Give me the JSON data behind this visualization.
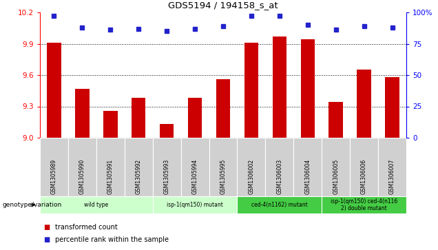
{
  "title": "GDS5194 / 194158_s_at",
  "samples": [
    "GSM1305989",
    "GSM1305990",
    "GSM1305991",
    "GSM1305992",
    "GSM1305993",
    "GSM1305994",
    "GSM1305995",
    "GSM1306002",
    "GSM1306003",
    "GSM1306004",
    "GSM1306005",
    "GSM1306006",
    "GSM1306007"
  ],
  "bar_values": [
    9.91,
    9.47,
    9.26,
    9.38,
    9.13,
    9.38,
    9.56,
    9.91,
    9.97,
    9.94,
    9.34,
    9.65,
    9.58
  ],
  "dot_values": [
    97,
    88,
    86,
    87,
    85,
    87,
    89,
    97,
    97,
    90,
    86,
    89,
    88
  ],
  "ylim_left": [
    9.0,
    10.2
  ],
  "ylim_right": [
    0,
    100
  ],
  "yticks_left": [
    9.0,
    9.3,
    9.6,
    9.9,
    10.2
  ],
  "yticks_right": [
    0,
    25,
    50,
    75,
    100
  ],
  "bar_color": "#cc0000",
  "dot_color": "#2222cc",
  "bar_base": 9.0,
  "groups": [
    {
      "label": "wild type",
      "start": 0,
      "end": 4,
      "color": "#ccffcc"
    },
    {
      "label": "isp-1(qm150) mutant",
      "start": 4,
      "end": 7,
      "color": "#ccffcc"
    },
    {
      "label": "ced-4(n1162) mutant",
      "start": 7,
      "end": 10,
      "color": "#44cc44"
    },
    {
      "label": "isp-1(qm150) ced-4(n116\n2) double mutant",
      "start": 10,
      "end": 13,
      "color": "#44cc44"
    }
  ],
  "legend_bar_label": "transformed count",
  "legend_dot_label": "percentile rank within the sample",
  "genotype_label": "genotype/variation",
  "cell_bg": "#d0d0d0",
  "plot_bg": "#ffffff",
  "group_colors": [
    "#ccffcc",
    "#ccffcc",
    "#44cc44",
    "#44cc44"
  ],
  "group_edge_colors": [
    "#aaddaa",
    "#aaddaa",
    "#22aa22",
    "#22aa22"
  ]
}
